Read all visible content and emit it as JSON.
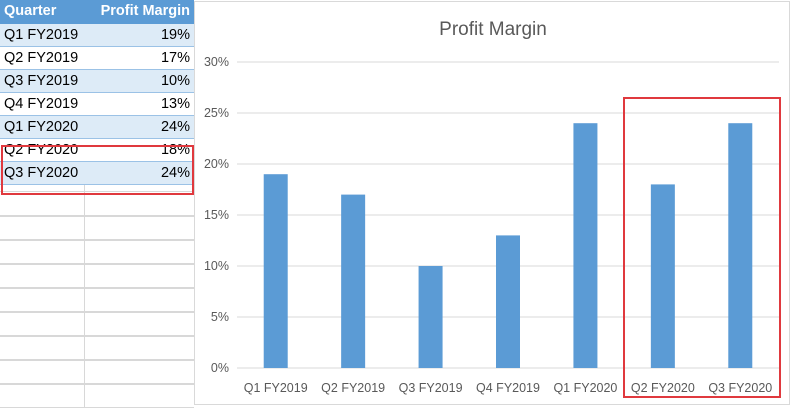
{
  "table": {
    "headers": [
      "Quarter",
      "Profit Margin"
    ],
    "rows": [
      [
        "Q1 FY2019",
        "19%"
      ],
      [
        "Q2 FY2019",
        "17%"
      ],
      [
        "Q3 FY2019",
        "10%"
      ],
      [
        "Q4 FY2019",
        "13%"
      ],
      [
        "Q1 FY2020",
        "24%"
      ],
      [
        "Q2 FY2020",
        "18%"
      ],
      [
        "Q3 FY2020",
        "24%"
      ]
    ]
  },
  "colors": {
    "bar": "#5b9bd5",
    "highlight": "#e0393e",
    "header_fill": "#5b9bd5",
    "band_fill": "#ddebf7"
  },
  "chart_data": {
    "type": "bar",
    "title": "Profit Margin",
    "xlabel": "",
    "ylabel": "",
    "categories": [
      "Q1 FY2019",
      "Q2 FY2019",
      "Q3 FY2019",
      "Q4 FY2019",
      "Q1 FY2020",
      "Q2 FY2020",
      "Q3 FY2020"
    ],
    "values": [
      19,
      17,
      10,
      13,
      24,
      18,
      24
    ],
    "value_unit": "%",
    "ylim": [
      0,
      30
    ],
    "yticks": [
      "0%",
      "5%",
      "10%",
      "15%",
      "20%",
      "25%",
      "30%"
    ],
    "grid": true,
    "legend": "none",
    "highlighted_categories": [
      "Q2 FY2020",
      "Q3 FY2020"
    ]
  }
}
